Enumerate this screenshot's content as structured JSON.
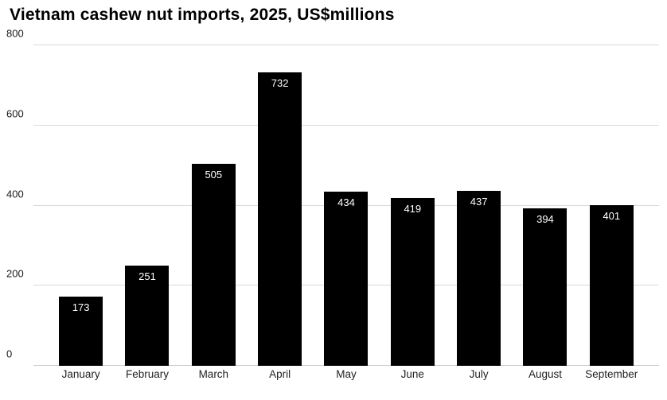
{
  "title": "Vietnam cashew nut imports, 2025, US$millions",
  "chart_data": {
    "type": "bar",
    "title": "Vietnam cashew nut imports, 2025, US$millions",
    "categories": [
      "January",
      "February",
      "March",
      "April",
      "May",
      "June",
      "July",
      "August",
      "September"
    ],
    "values": [
      173,
      251,
      505,
      732,
      434,
      419,
      437,
      394,
      401
    ],
    "xlabel": "",
    "ylabel": "",
    "ylim": [
      0,
      800
    ],
    "yticks": [
      0,
      200,
      400,
      600,
      800
    ],
    "grid": true,
    "legend": "none",
    "bar_color": "#000000",
    "value_label_color": "#ffffff",
    "gridline_color": "#d9d9d9",
    "background_color": "#ffffff"
  }
}
